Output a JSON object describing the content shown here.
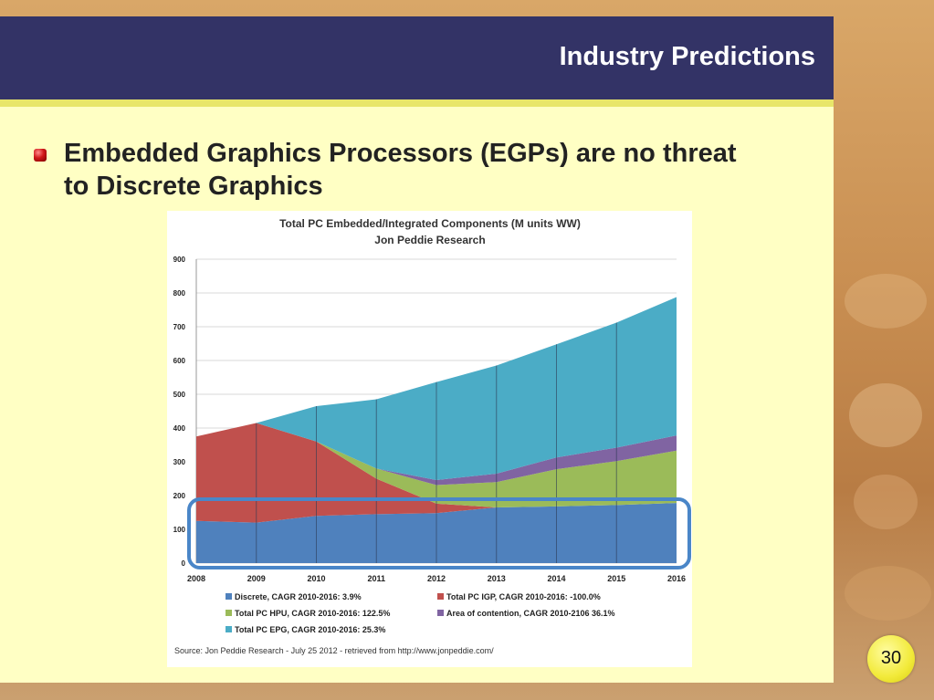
{
  "slide": {
    "title": "Industry Predictions",
    "bullet": "Embedded Graphics Processors (EGPs) are no threat to Discrete Graphics",
    "page_number": "30"
  },
  "chart_data": {
    "type": "area",
    "title": "Total PC Embedded/Integrated Components (M units WW)",
    "subtitle": "Jon Peddie Research",
    "x": [
      "2008",
      "2009",
      "2010",
      "2011",
      "2012",
      "2013",
      "2014",
      "2015",
      "2016"
    ],
    "ylim": [
      0,
      900
    ],
    "yticks": [
      0,
      100,
      200,
      300,
      400,
      500,
      600,
      700,
      800,
      900
    ],
    "grid": true,
    "legend_position": "bottom",
    "series": [
      {
        "name": "Discrete, CAGR 2010-2016: 3.9%",
        "color": "#4f81bd",
        "values": [
          125,
          120,
          140,
          145,
          148,
          165,
          168,
          172,
          178
        ]
      },
      {
        "name": "Total PC IGP, CAGR 2010-2016: -100.0%",
        "color": "#c0504d",
        "values": [
          250,
          295,
          220,
          105,
          28,
          0,
          0,
          0,
          0
        ]
      },
      {
        "name": "Total PC HPU, CAGR 2010-2016: 122.5%",
        "color": "#9bbb59",
        "values": [
          0,
          0,
          0,
          30,
          55,
          75,
          110,
          130,
          155
        ]
      },
      {
        "name": "Area of contention, CAGR 2010-2106 36.1%",
        "color": "#8064a2",
        "values": [
          0,
          0,
          0,
          0,
          15,
          25,
          35,
          40,
          45
        ]
      },
      {
        "name": "Total PC EPG, CAGR 2010-2016: 25.3%",
        "color": "#4bacc6",
        "values": [
          0,
          0,
          105,
          205,
          290,
          320,
          335,
          370,
          410
        ]
      }
    ],
    "source": "Source: Jon Peddie Research - July 25 2012 - retrieved from http://www.jonpeddie.com/"
  }
}
